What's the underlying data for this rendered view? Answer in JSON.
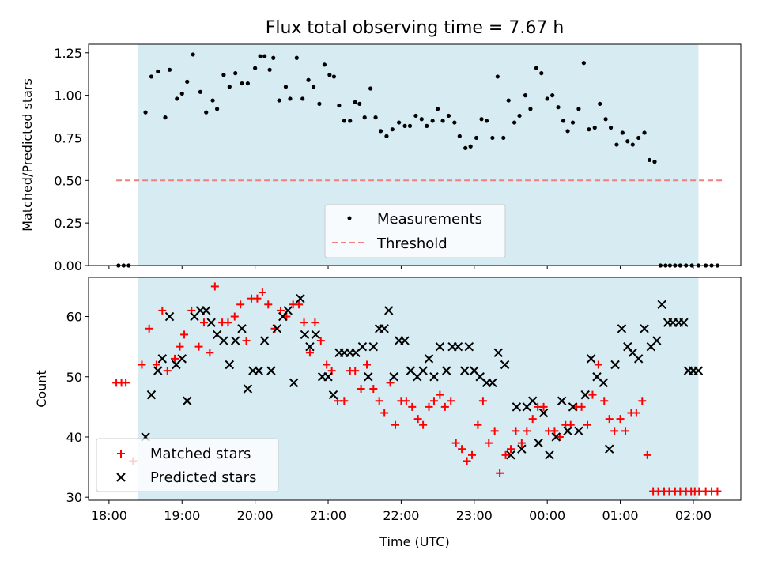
{
  "chart_data": [
    {
      "type": "scatter",
      "title": "Flux total observing time = 7.67 h",
      "ylabel": "Matched/Predicted stars",
      "xlabel": "",
      "x_unit": "hours since 18:00 UTC",
      "xlim": [
        -0.28,
        8.65
      ],
      "ylim": [
        0.0,
        1.3
      ],
      "yticks": [
        0.0,
        0.25,
        0.5,
        0.75,
        1.0,
        1.25
      ],
      "ytick_labels": [
        "0.00",
        "0.25",
        "0.50",
        "0.75",
        "1.00",
        "1.25"
      ],
      "shaded_span": [
        0.4,
        8.07
      ],
      "threshold": {
        "y": 0.5,
        "x_range": [
          0.1,
          8.4
        ],
        "color": "#f08080"
      },
      "series": [
        {
          "name": "Measurements",
          "color": "#000000",
          "x": [
            0.13,
            0.2,
            0.27,
            0.5,
            0.58,
            0.67,
            0.77,
            0.83,
            0.93,
            1.0,
            1.07,
            1.15,
            1.25,
            1.33,
            1.42,
            1.48,
            1.57,
            1.65,
            1.73,
            1.82,
            1.9,
            2.0,
            2.07,
            2.13,
            2.2,
            2.25,
            2.33,
            2.42,
            2.48,
            2.57,
            2.65,
            2.73,
            2.8,
            2.88,
            2.95,
            3.02,
            3.08,
            3.15,
            3.22,
            3.3,
            3.37,
            3.43,
            3.5,
            3.58,
            3.65,
            3.72,
            3.8,
            3.88,
            3.97,
            4.05,
            4.12,
            4.2,
            4.28,
            4.35,
            4.43,
            4.5,
            4.57,
            4.65,
            4.73,
            4.8,
            4.88,
            4.95,
            5.03,
            5.1,
            5.17,
            5.25,
            5.32,
            5.4,
            5.47,
            5.55,
            5.62,
            5.7,
            5.77,
            5.85,
            5.92,
            6.0,
            6.07,
            6.15,
            6.22,
            6.28,
            6.35,
            6.43,
            6.5,
            6.57,
            6.65,
            6.72,
            6.8,
            6.87,
            6.95,
            7.03,
            7.1,
            7.17,
            7.25,
            7.33,
            7.4,
            7.47,
            7.55,
            7.62,
            7.68,
            7.75,
            7.82,
            7.9,
            7.98,
            8.07,
            8.17,
            8.25,
            8.33
          ],
          "y": [
            0.0,
            0.0,
            0.0,
            0.9,
            1.11,
            1.14,
            0.87,
            1.15,
            0.98,
            1.01,
            1.08,
            1.24,
            1.02,
            0.9,
            0.97,
            0.92,
            1.12,
            1.05,
            1.13,
            1.07,
            1.07,
            1.16,
            1.23,
            1.23,
            1.15,
            1.22,
            0.97,
            1.05,
            0.98,
            1.22,
            0.98,
            1.09,
            1.05,
            0.95,
            1.18,
            1.12,
            1.11,
            0.94,
            0.85,
            0.85,
            0.96,
            0.95,
            0.87,
            1.04,
            0.87,
            0.79,
            0.76,
            0.8,
            0.84,
            0.82,
            0.82,
            0.88,
            0.86,
            0.82,
            0.85,
            0.92,
            0.85,
            0.88,
            0.84,
            0.76,
            0.69,
            0.7,
            0.75,
            0.86,
            0.85,
            0.75,
            1.11,
            0.75,
            0.97,
            0.84,
            0.88,
            1.0,
            0.92,
            1.16,
            1.13,
            0.98,
            1.0,
            0.93,
            0.85,
            0.79,
            0.84,
            0.92,
            1.19,
            0.8,
            0.81,
            0.95,
            0.86,
            0.81,
            0.71,
            0.78,
            0.73,
            0.71,
            0.75,
            0.78,
            0.62,
            0.61,
            0.0,
            0.0,
            0.0,
            0.0,
            0.0,
            0.0,
            0.0,
            0.0,
            0.0,
            0.0,
            0.0
          ]
        }
      ],
      "legend": {
        "placement": "lower center",
        "entries": [
          "Measurements",
          "Threshold"
        ]
      }
    },
    {
      "type": "scatter",
      "title": "",
      "ylabel": "Count",
      "xlabel": "Time (UTC)",
      "x_unit": "hours since 18:00 UTC",
      "xlim": [
        -0.28,
        8.65
      ],
      "ylim": [
        29.5,
        66.5
      ],
      "yticks": [
        30,
        40,
        50,
        60
      ],
      "ytick_labels": [
        "30",
        "40",
        "50",
        "60"
      ],
      "xticks": [
        0,
        1,
        2,
        3,
        4,
        5,
        6,
        7,
        8
      ],
      "xtick_labels": [
        "18:00",
        "19:00",
        "20:00",
        "21:00",
        "22:00",
        "23:00",
        "00:00",
        "01:00",
        "02:00"
      ],
      "shaded_span": [
        0.4,
        8.07
      ],
      "series": [
        {
          "name": "Matched stars",
          "marker": "plus",
          "color": "#ff0000",
          "x": [
            0.1,
            0.17,
            0.23,
            0.33,
            0.45,
            0.55,
            0.65,
            0.73,
            0.8,
            0.9,
            0.97,
            1.03,
            1.13,
            1.23,
            1.3,
            1.38,
            1.45,
            1.55,
            1.63,
            1.72,
            1.8,
            1.88,
            1.95,
            2.03,
            2.1,
            2.18,
            2.27,
            2.35,
            2.43,
            2.52,
            2.6,
            2.67,
            2.75,
            2.82,
            2.9,
            2.98,
            3.05,
            3.13,
            3.22,
            3.3,
            3.37,
            3.45,
            3.53,
            3.62,
            3.7,
            3.77,
            3.85,
            3.92,
            4.0,
            4.07,
            4.15,
            4.23,
            4.3,
            4.38,
            4.45,
            4.53,
            4.6,
            4.68,
            4.75,
            4.83,
            4.9,
            4.97,
            5.05,
            5.12,
            5.2,
            5.28,
            5.35,
            5.43,
            5.5,
            5.57,
            5.65,
            5.72,
            5.8,
            5.87,
            5.95,
            6.02,
            6.1,
            6.17,
            6.25,
            6.32,
            6.4,
            6.47,
            6.55,
            6.62,
            6.7,
            6.78,
            6.85,
            6.92,
            7.0,
            7.07,
            7.15,
            7.22,
            7.3,
            7.37,
            7.45,
            7.52,
            7.6,
            7.67,
            7.75,
            7.82,
            7.9,
            7.97,
            8.02,
            8.08,
            8.17,
            8.25,
            8.33
          ],
          "y": [
            49,
            49,
            49,
            36,
            52,
            58,
            52,
            61,
            51,
            53,
            55,
            57,
            61,
            55,
            59,
            54,
            65,
            59,
            59,
            60,
            62,
            56,
            63,
            63,
            64,
            62,
            58,
            61,
            60,
            62,
            62,
            59,
            54,
            59,
            56,
            52,
            51,
            46,
            46,
            51,
            51,
            48,
            52,
            48,
            46,
            44,
            49,
            42,
            46,
            46,
            45,
            43,
            42,
            45,
            46,
            47,
            45,
            46,
            39,
            38,
            36,
            37,
            42,
            46,
            39,
            41,
            34,
            37,
            38,
            41,
            39,
            41,
            43,
            45,
            45,
            41,
            41,
            40,
            42,
            42,
            45,
            45,
            42,
            47,
            52,
            46,
            43,
            41,
            43,
            41,
            44,
            44,
            46,
            37,
            31,
            31,
            31,
            31,
            31,
            31,
            31,
            31,
            31,
            31,
            31,
            31,
            31
          ]
        },
        {
          "name": "Predicted stars",
          "marker": "x",
          "color": "#000000",
          "x": [
            0.5,
            0.58,
            0.67,
            0.73,
            0.83,
            0.92,
            1.0,
            1.07,
            1.17,
            1.25,
            1.33,
            1.4,
            1.48,
            1.57,
            1.65,
            1.73,
            1.82,
            1.9,
            1.97,
            2.05,
            2.13,
            2.22,
            2.3,
            2.38,
            2.45,
            2.53,
            2.62,
            2.68,
            2.75,
            2.83,
            2.92,
            3.0,
            3.07,
            3.15,
            3.22,
            3.3,
            3.38,
            3.47,
            3.55,
            3.62,
            3.7,
            3.77,
            3.83,
            3.9,
            3.97,
            4.05,
            4.13,
            4.22,
            4.3,
            4.38,
            4.45,
            4.53,
            4.62,
            4.7,
            4.78,
            4.87,
            4.93,
            5.0,
            5.08,
            5.17,
            5.25,
            5.33,
            5.42,
            5.5,
            5.58,
            5.65,
            5.72,
            5.8,
            5.88,
            5.95,
            6.03,
            6.12,
            6.2,
            6.28,
            6.35,
            6.43,
            6.52,
            6.6,
            6.68,
            6.77,
            6.85,
            6.93,
            7.02,
            7.1,
            7.17,
            7.25,
            7.33,
            7.42,
            7.5,
            7.57,
            7.65,
            7.72,
            7.8,
            7.87,
            7.93,
            8.0,
            8.07
          ],
          "y": [
            40,
            47,
            51,
            53,
            60,
            52,
            53,
            46,
            60,
            61,
            61,
            59,
            57,
            56,
            52,
            56,
            58,
            48,
            51,
            51,
            56,
            51,
            58,
            60,
            61,
            49,
            63,
            57,
            55,
            57,
            50,
            50,
            47,
            54,
            54,
            54,
            54,
            55,
            50,
            55,
            58,
            58,
            61,
            50,
            56,
            56,
            51,
            50,
            51,
            53,
            50,
            55,
            51,
            55,
            55,
            51,
            55,
            51,
            50,
            49,
            49,
            54,
            52,
            37,
            45,
            38,
            45,
            46,
            39,
            44,
            37,
            40,
            46,
            41,
            45,
            41,
            47,
            53,
            50,
            49,
            38,
            52,
            58,
            55,
            54,
            53,
            58,
            55,
            56,
            62,
            59,
            59,
            59,
            59,
            51,
            51,
            51
          ]
        }
      ],
      "legend": {
        "placement": "lower left",
        "entries": [
          "Matched stars",
          "Predicted stars"
        ]
      }
    }
  ]
}
